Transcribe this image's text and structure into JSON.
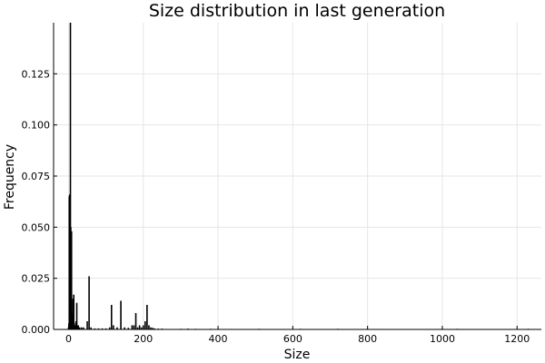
{
  "chart_data": {
    "type": "bar",
    "title": "Size distribution in last generation",
    "xlabel": "Size",
    "ylabel": "Frequency",
    "xlim": [
      -40,
      1265
    ],
    "ylim": [
      0,
      0.15
    ],
    "x_ticks": [
      0,
      200,
      400,
      600,
      800,
      1000,
      1200
    ],
    "y_ticks": [
      0.0,
      0.025,
      0.05,
      0.075,
      0.1,
      0.125
    ],
    "y_tick_labels": [
      "0.000",
      "0.025",
      "0.050",
      "0.075",
      "0.100",
      "0.125"
    ],
    "grid": true,
    "legend": "none",
    "bar_color": "#000000",
    "bar_width": 1,
    "x": [
      0,
      1,
      2,
      3,
      4,
      5,
      6,
      7,
      8,
      9,
      10,
      11,
      12,
      13,
      14,
      15,
      16,
      18,
      20,
      22,
      24,
      26,
      28,
      30,
      35,
      40,
      50,
      55,
      60,
      70,
      80,
      90,
      100,
      110,
      115,
      120,
      130,
      140,
      150,
      160,
      170,
      175,
      180,
      185,
      190,
      195,
      200,
      205,
      210,
      215,
      220,
      225,
      230,
      240,
      250,
      300,
      320,
      340,
      380,
      400,
      510,
      620,
      720,
      800,
      1000,
      1040,
      1230
    ],
    "values": [
      0.001,
      0.003,
      0.065,
      0.066,
      0.065,
      0.15,
      0.05,
      0.018,
      0.048,
      0.008,
      0.004,
      0.006,
      0.015,
      0.002,
      0.017,
      0.003,
      0.002,
      0.002,
      0.004,
      0.013,
      0.002,
      0.002,
      0.001,
      0.001,
      0.001,
      0.001,
      0.004,
      0.026,
      0.001,
      0.0005,
      0.0005,
      0.0005,
      0.0005,
      0.001,
      0.012,
      0.002,
      0.001,
      0.014,
      0.001,
      0.0008,
      0.002,
      0.002,
      0.008,
      0.001,
      0.002,
      0.001,
      0.002,
      0.004,
      0.012,
      0.002,
      0.001,
      0.0008,
      0.0005,
      0.0004,
      0.0004,
      0.0003,
      0.0004,
      0.0003,
      0.0003,
      0.0003,
      0.0003,
      0.0003,
      0.0003,
      0.0003,
      0.0003,
      0.0003,
      0.0003
    ]
  }
}
